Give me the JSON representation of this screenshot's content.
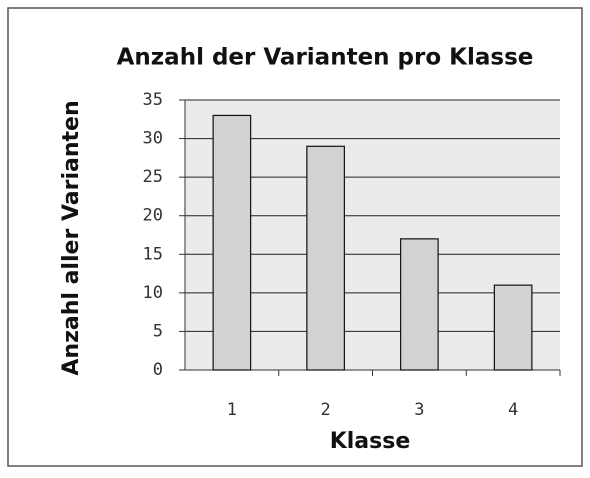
{
  "chart_data": {
    "type": "bar",
    "title": "Anzahl der Varianten pro Klasse",
    "x_label": "Klasse",
    "y_label": "Anzahl aller Varianten",
    "categories": [
      "1",
      "2",
      "3",
      "4"
    ],
    "values": [
      33,
      29,
      17,
      11
    ],
    "color": "#d2d2d2",
    "ylim": [
      0,
      35
    ],
    "yticks": [
      0,
      5,
      10,
      15,
      20,
      25,
      30,
      35
    ],
    "grid": true
  }
}
